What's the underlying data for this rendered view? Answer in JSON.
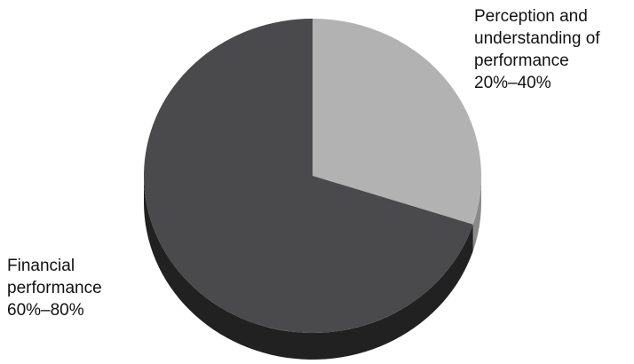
{
  "chart_data": {
    "type": "pie",
    "style": "3d",
    "title": "",
    "slices": [
      {
        "label_lines": [
          "Perception and",
          "understanding of",
          "performance"
        ],
        "range_label": "20%–40%",
        "value_range": [
          20,
          40
        ],
        "value": 30,
        "color": "#b2b2b2",
        "side_color": "#8a8a8a"
      },
      {
        "label_lines": [
          "Financial",
          "performance"
        ],
        "range_label": "60%–80%",
        "value_range": [
          60,
          80
        ],
        "value": 70,
        "color": "#4a4a4c",
        "side_color": "#222122"
      }
    ]
  }
}
